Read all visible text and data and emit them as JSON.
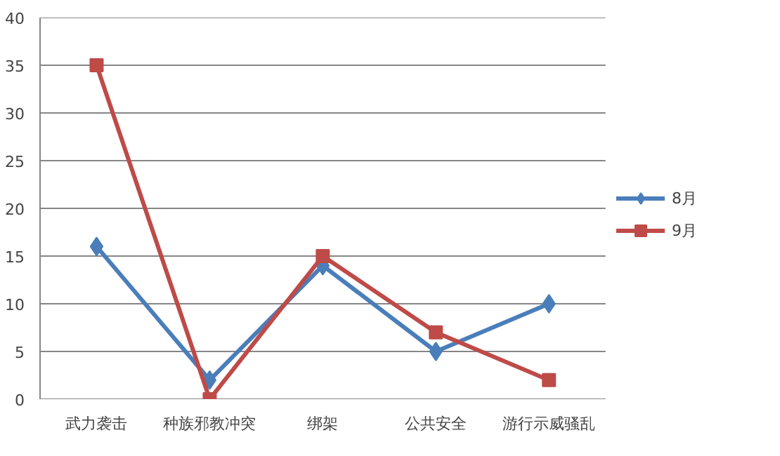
{
  "chart_data": {
    "type": "line",
    "categories": [
      "武力袭击",
      "种族邪教冲突",
      "绑架",
      "公共安全",
      "游行示威骚乱"
    ],
    "series": [
      {
        "name": "8月",
        "color": "#4a7ebb",
        "values": [
          16,
          2,
          14,
          5,
          10
        ],
        "marker": "diamond"
      },
      {
        "name": "9月",
        "color": "#be4b48",
        "values": [
          35,
          0,
          15,
          7,
          2
        ],
        "marker": "square"
      }
    ],
    "ylim": [
      0,
      40
    ],
    "yticks": [
      0,
      5,
      10,
      15,
      20,
      25,
      30,
      35,
      40
    ],
    "grid": "y",
    "legend": "right",
    "line_style": "solid"
  }
}
